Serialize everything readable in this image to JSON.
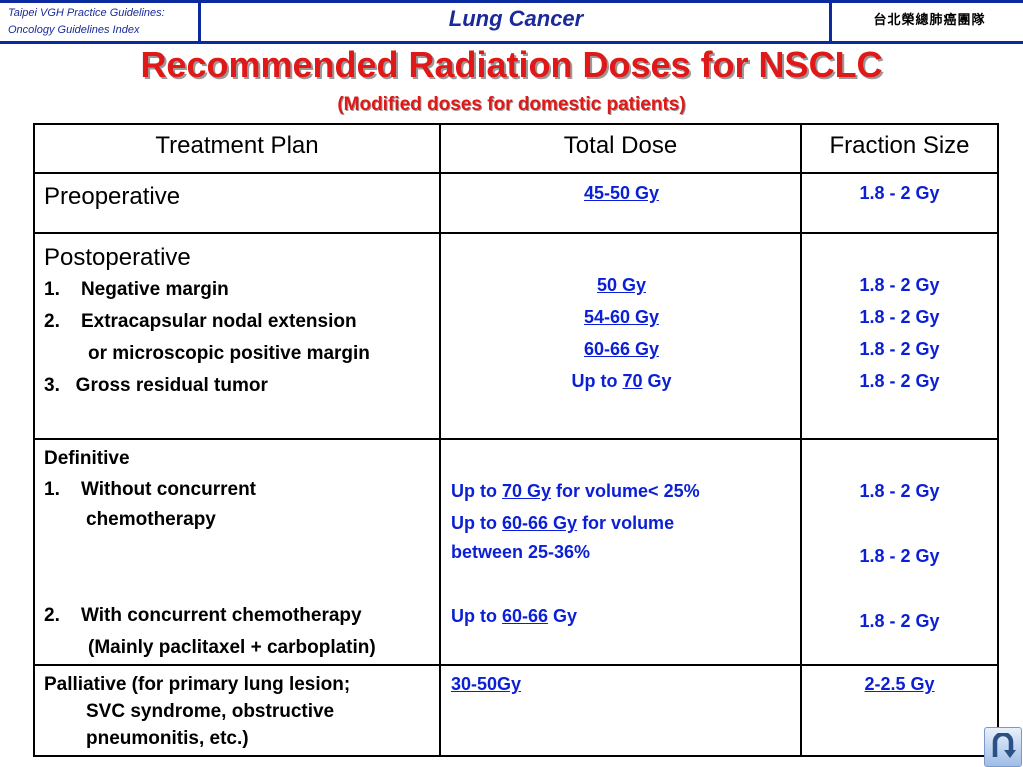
{
  "header": {
    "left_line1": "Taipei VGH Practice Guidelines:",
    "left_line2": "Oncology Guidelines Index",
    "center_title": "Lung Cancer",
    "right_text": "台北榮總肺癌團隊"
  },
  "title": "Recommended Radiation Doses for NSCLC",
  "subtitle": "(Modified doses for domestic patients)",
  "table": {
    "headers": [
      "Treatment Plan",
      "Total Dose",
      "Fraction Size"
    ],
    "preoperative": {
      "plan": "Preoperative",
      "dose": "45-50 Gy",
      "fraction": "1.8 - 2 Gy"
    },
    "postoperative": {
      "plan": "Postoperative",
      "item1": "1.    Negative margin",
      "item2": "2.    Extracapsular nodal extension",
      "item2b": "or microscopic positive margin",
      "item3": "3.   Gross residual tumor",
      "dose1": "50 Gy",
      "dose2": "54-60 Gy",
      "dose3": "60-66 Gy",
      "dose4_pre": "Up to ",
      "dose4_link": "70",
      "dose4_post": " Gy",
      "fraction1": "1.8 - 2 Gy",
      "fraction2": "1.8 - 2 Gy",
      "fraction3": "1.8 - 2 Gy",
      "fraction4": "1.8 - 2 Gy"
    },
    "definitive": {
      "plan": "Definitive",
      "item1": "1.    Without concurrent",
      "item1b": "chemotherapy",
      "item2": "2.    With concurrent chemotherapy",
      "item2b": "(Mainly paclitaxel + carboplatin)",
      "dose1_pre": "Up to ",
      "dose1_link": "70 Gy",
      "dose1_post": " for volume< 25%",
      "dose2_pre": "Up to ",
      "dose2_link": "60-66 Gy",
      "dose2_post": " for volume",
      "dose2_line2": "between 25-36%",
      "dose3_pre": "Up to ",
      "dose3_link": "60-66",
      "dose3_post": " Gy",
      "fraction1": "1.8 - 2 Gy",
      "fraction2": "1.8 - 2 Gy",
      "fraction3": "1.8 - 2 Gy"
    },
    "palliative": {
      "line1": "Palliative (for primary lung lesion;",
      "line2": "SVC syndrome, obstructive",
      "line3": "pneumonitis, etc.)",
      "dose": "30-50Gy",
      "fraction": "2-2.5 Gy"
    }
  },
  "back_button": {
    "icon": "u-turn-return-icon"
  },
  "colors": {
    "title_red": "#e01818",
    "link_blue": "#0a1fd6",
    "header_blue": "#0b2a9e"
  }
}
